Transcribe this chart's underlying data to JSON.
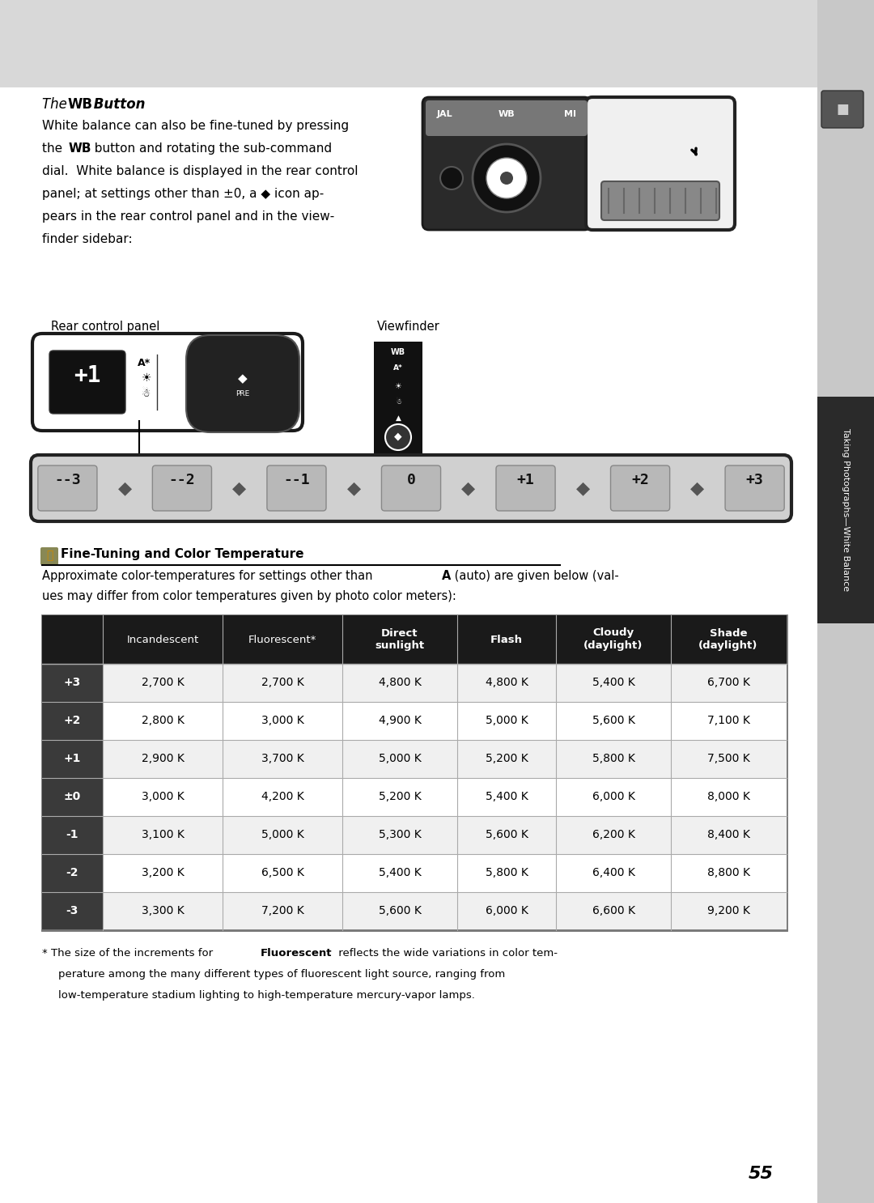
{
  "page_bg": "#d8d8d8",
  "content_bg": "#ffffff",
  "page_number": "55",
  "sidebar_bg": "#c8c8c8",
  "sidebar_text": "Taking Photographs—White Balance",
  "sidebar_tab_bg": "#2a2a2a",
  "table_header_bg": "#1a1a1a",
  "table_header_color": "#ffffff",
  "table_label_bg": "#3a3a3a",
  "table_label_color": "#ffffff",
  "rows": [
    [
      "+3",
      "2,700 K",
      "2,700 K",
      "4,800 K",
      "4,800 K",
      "5,400 K",
      "6,700 K"
    ],
    [
      "+2",
      "2,800 K",
      "3,000 K",
      "4,900 K",
      "5,000 K",
      "5,600 K",
      "7,100 K"
    ],
    [
      "+1",
      "2,900 K",
      "3,700 K",
      "5,000 K",
      "5,200 K",
      "5,800 K",
      "7,500 K"
    ],
    [
      "±0",
      "3,000 K",
      "4,200 K",
      "5,200 K",
      "5,400 K",
      "6,000 K",
      "8,000 K"
    ],
    [
      "-1",
      "3,100 K",
      "5,000 K",
      "5,300 K",
      "5,600 K",
      "6,200 K",
      "8,400 K"
    ],
    [
      "-2",
      "3,200 K",
      "6,500 K",
      "5,400 K",
      "5,800 K",
      "6,400 K",
      "8,800 K"
    ],
    [
      "-3",
      "3,300 K",
      "7,200 K",
      "5,600 K",
      "6,000 K",
      "6,600 K",
      "9,200 K"
    ]
  ]
}
